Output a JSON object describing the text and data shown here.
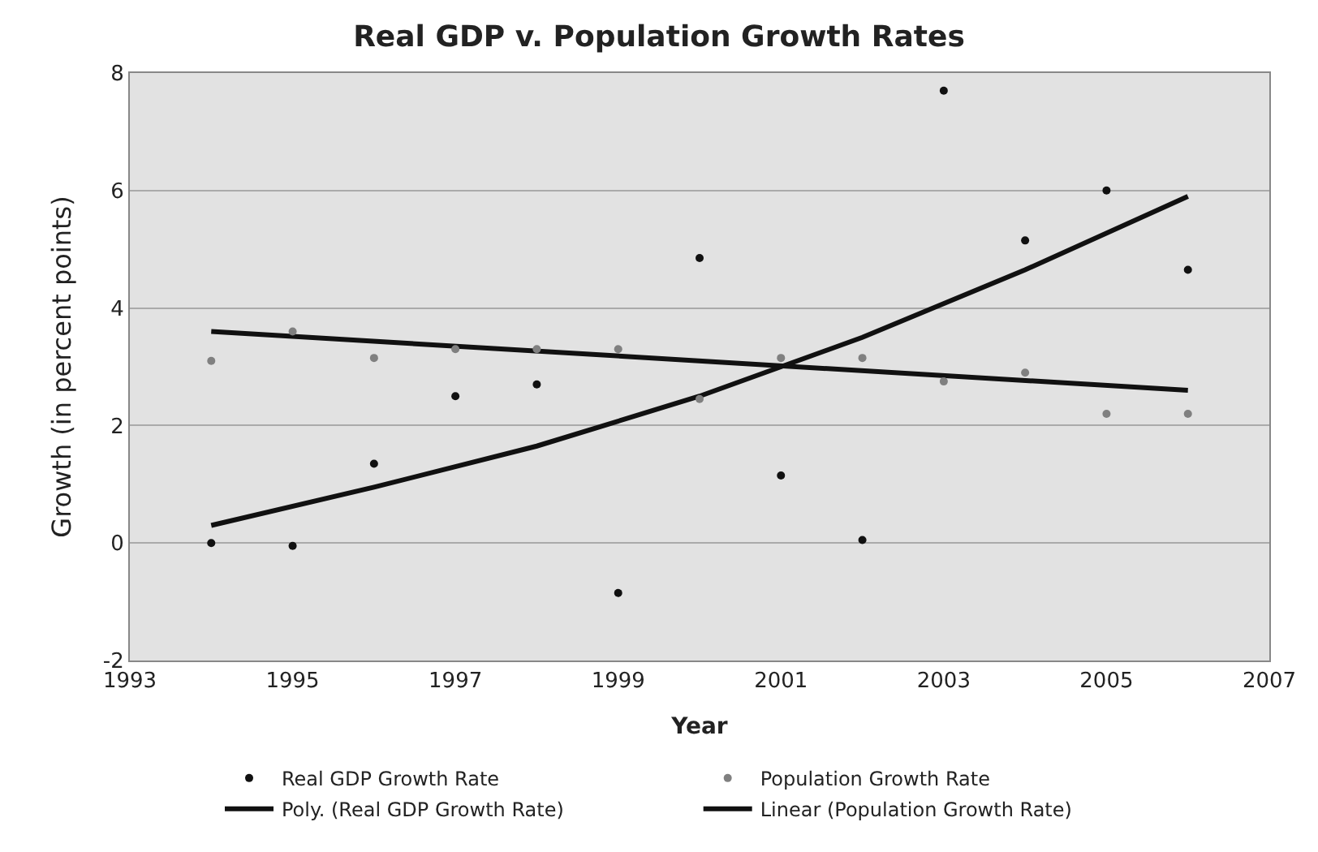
{
  "chart_data": {
    "type": "scatter",
    "title": "Real GDP v. Population Growth Rates",
    "xlabel": "Year",
    "ylabel": "Growth (in percent points)",
    "xlim": [
      1993,
      2007
    ],
    "xticks": [
      1993,
      1995,
      1997,
      1999,
      2001,
      2003,
      2005,
      2007
    ],
    "ylim": [
      -2,
      8
    ],
    "yticks": [
      -2,
      0,
      2,
      4,
      6,
      8
    ],
    "grid": "y",
    "legend": "bottom",
    "marker": "circle",
    "x": [
      1994,
      1995,
      1996,
      1997,
      1998,
      1999,
      2000,
      2001,
      2002,
      2003,
      2004,
      2005,
      2006
    ],
    "series": [
      {
        "name": "Real GDP Growth Rate",
        "color": "#111111",
        "values": [
          0.0,
          -0.05,
          1.35,
          2.5,
          2.7,
          -0.85,
          4.85,
          1.15,
          0.05,
          7.7,
          5.15,
          6.0,
          4.65
        ]
      },
      {
        "name": "Population Growth Rate",
        "color": "#808080",
        "values": [
          3.1,
          3.6,
          3.15,
          3.3,
          3.3,
          3.3,
          2.45,
          3.15,
          3.15,
          2.75,
          2.9,
          2.2,
          2.2
        ]
      },
      {
        "name": "Poly. (Real GDP Growth Rate)",
        "type": "line",
        "color": "#111111",
        "marker": "none",
        "line_style": "solid",
        "x": [
          1994,
          1996,
          1998,
          2000,
          2001,
          2002,
          2004,
          2006
        ],
        "values": [
          0.3,
          0.95,
          1.65,
          2.5,
          3.0,
          3.5,
          4.65,
          5.9
        ]
      },
      {
        "name": "Linear (Population Growth Rate)",
        "type": "line",
        "color": "#111111",
        "marker": "none",
        "line_style": "solid",
        "x": [
          1994,
          2006
        ],
        "values": [
          3.6,
          2.6
        ]
      }
    ]
  }
}
